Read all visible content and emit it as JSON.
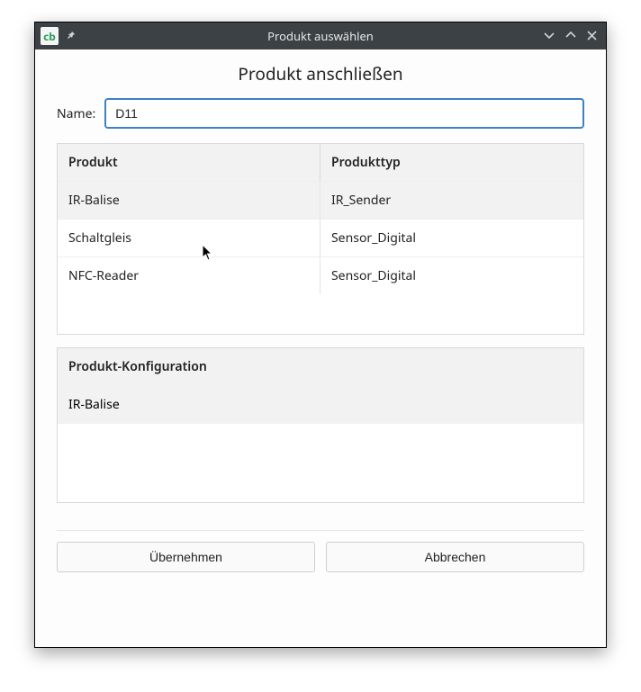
{
  "window": {
    "title": "Produkt auswählen"
  },
  "heading": "Produkt anschließen",
  "nameField": {
    "label": "Name:",
    "value": "D11"
  },
  "productsTable": {
    "headers": {
      "product": "Produkt",
      "type": "Produkttyp"
    },
    "rows": [
      {
        "product": "IR-Balise",
        "type": "IR_Sender",
        "selected": true
      },
      {
        "product": "Schaltgleis",
        "type": "Sensor_Digital",
        "selected": false
      },
      {
        "product": "NFC-Reader",
        "type": "Sensor_Digital",
        "selected": false
      }
    ]
  },
  "configTable": {
    "header": "Produkt-Konfiguration",
    "rows": [
      {
        "label": "IR-Balise"
      }
    ]
  },
  "buttons": {
    "ok": "Übernehmen",
    "cancel": "Abbrechen"
  }
}
